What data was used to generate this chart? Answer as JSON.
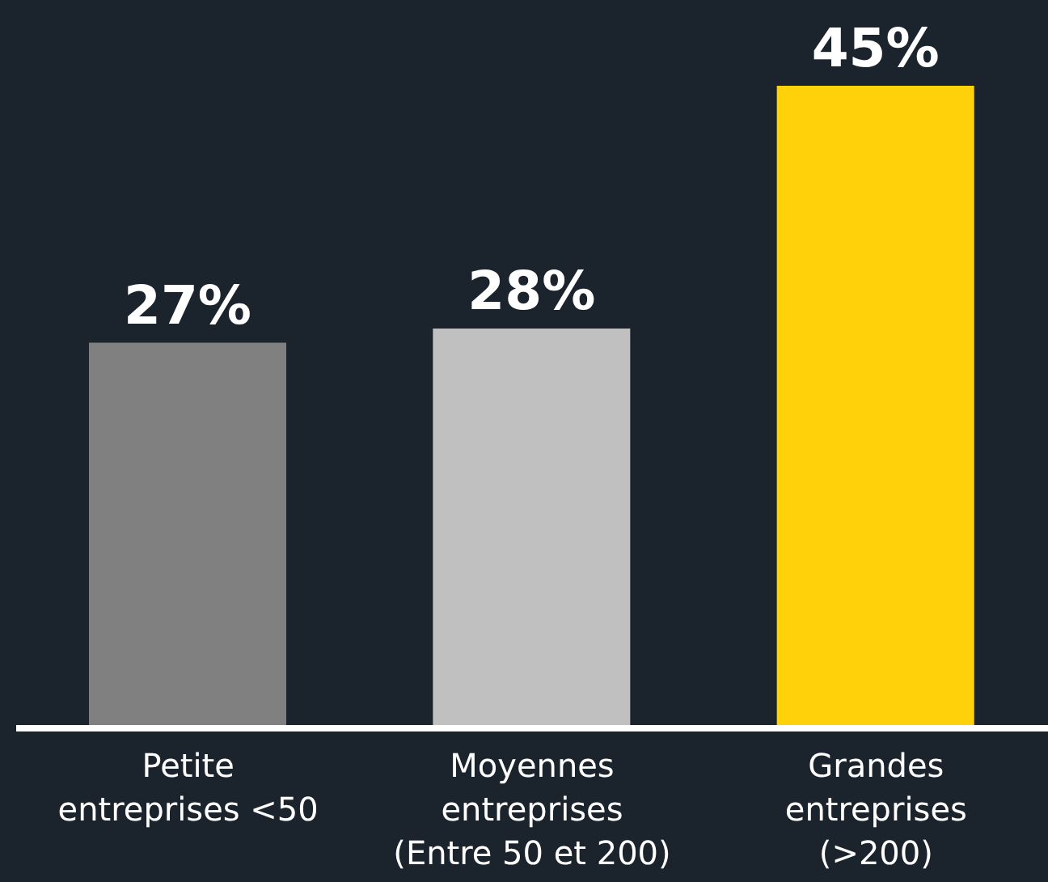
{
  "chart_data": {
    "type": "bar",
    "categories": [
      "Petite entreprises <50",
      "Moyennes entreprises (Entre 50 et 200)",
      "Grandes entreprises (>200)"
    ],
    "values": [
      27,
      28,
      45
    ],
    "colors": [
      "#808080",
      "#c0c0c0",
      "#fed10a"
    ],
    "value_labels": [
      "27%",
      "28%",
      "45%"
    ]
  }
}
